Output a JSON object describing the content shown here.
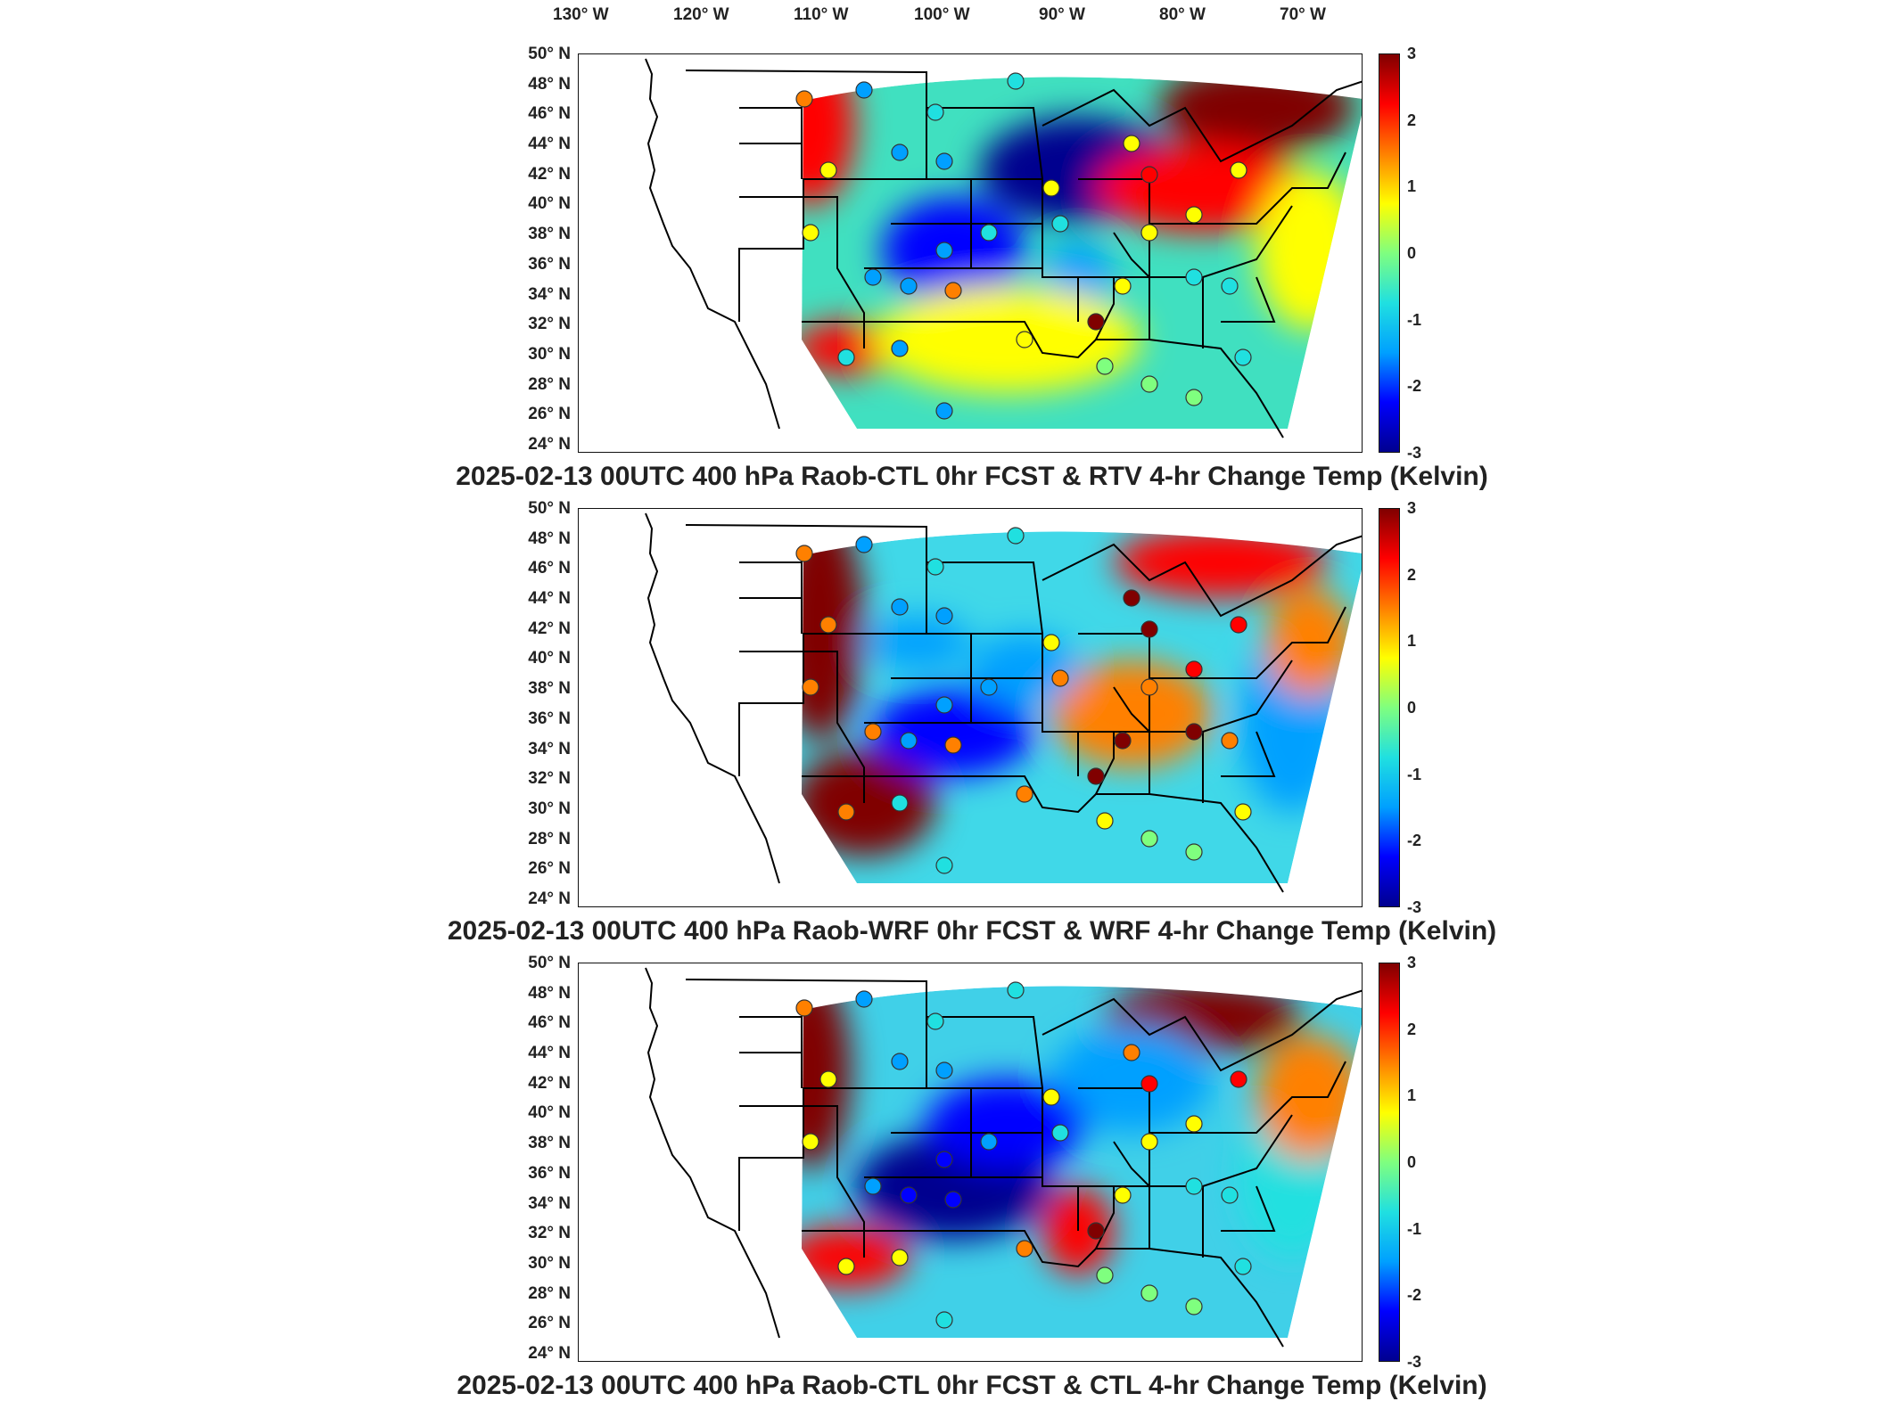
{
  "longitude_labels": [
    "130° W",
    "120° W",
    "110° W",
    "100° W",
    "90° W",
    "80° W",
    "70° W"
  ],
  "latitude_labels": [
    "50° N",
    "48° N",
    "46° N",
    "44° N",
    "42° N",
    "40° N",
    "38° N",
    "36° N",
    "34° N",
    "32° N",
    "30° N",
    "28° N",
    "26° N",
    "24° N"
  ],
  "colorbar": {
    "ticks": [
      "3",
      "2",
      "1",
      "0",
      "-1",
      "-2",
      "-3"
    ],
    "range": [
      -3,
      3
    ],
    "colormap": "jet",
    "colors": [
      "#00008f",
      "#0000ff",
      "#00a0ff",
      "#20e0e0",
      "#7fff7f",
      "#ffff00",
      "#ff8000",
      "#ff0000",
      "#800000"
    ]
  },
  "panels": [
    {
      "title": "2025-02-13 00UTC 400 hPa Raob-CTL 0hr FCST & RTV 4-hr Change Temp (Kelvin)",
      "dominant_background": "#40e0c0"
    },
    {
      "title": "2025-02-13 00UTC 400 hPa Raob-WRF 0hr FCST & WRF 4-hr Change Temp (Kelvin)",
      "dominant_background": "#40d8e8"
    },
    {
      "title": "2025-02-13 00UTC 400 hPa Raob-CTL 0hr FCST & CTL 4-hr Change Temp (Kelvin)",
      "dominant_background": "#40d0e8"
    }
  ],
  "icons": {
    "station_marker": "circle-icon",
    "map_boundaries": "state-boundary-lines"
  }
}
